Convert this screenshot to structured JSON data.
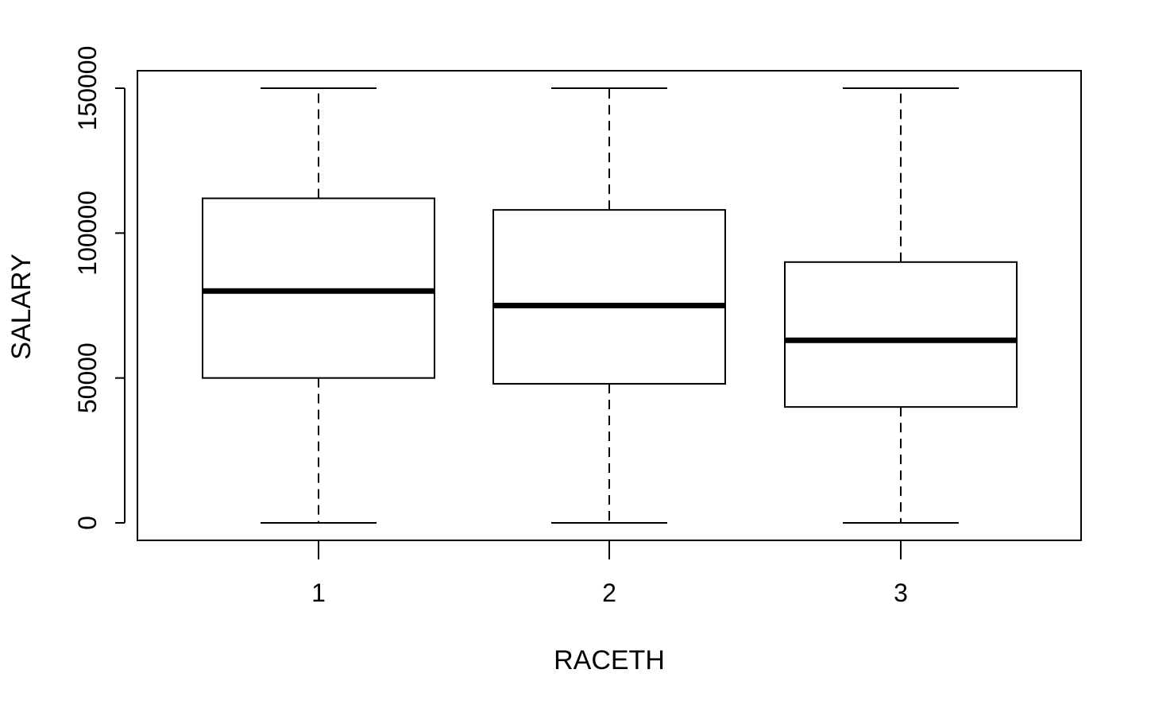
{
  "chart_data": {
    "type": "box",
    "title": "",
    "xlabel": "RACETH",
    "ylabel": "SALARY",
    "ylim": [
      0,
      150000
    ],
    "y_ticks": [
      "0",
      "50000",
      "100000",
      "150000"
    ],
    "categories": [
      "1",
      "2",
      "3"
    ],
    "boxes": [
      {
        "category": "1",
        "min": 0,
        "q1": 50000,
        "median": 80000,
        "q3": 112000,
        "max": 150000
      },
      {
        "category": "2",
        "min": 0,
        "q1": 48000,
        "median": 75000,
        "q3": 108000,
        "max": 150000
      },
      {
        "category": "3",
        "min": 0,
        "q1": 40000,
        "median": 63000,
        "q3": 90000,
        "max": 150000
      }
    ],
    "grid": false,
    "colors": {
      "box_fill": "#ffffff",
      "stroke": "#000000"
    }
  }
}
